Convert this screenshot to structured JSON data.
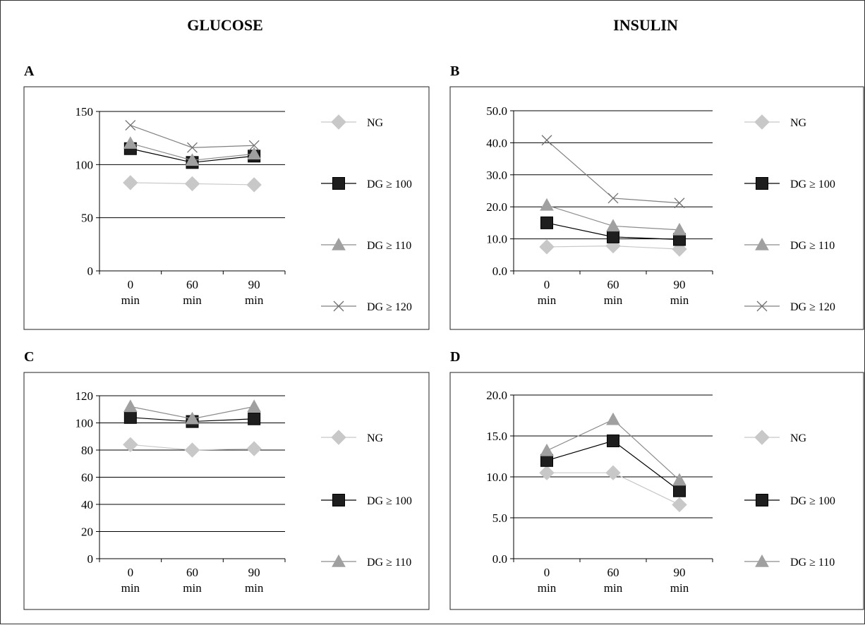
{
  "figure": {
    "column_titles": [
      "GLUCOSE",
      "INSULIN"
    ]
  },
  "series_styles": {
    "NG": {
      "marker": "diamond",
      "color": "#c8c8c8",
      "line": "#c8c8c8"
    },
    "DG ≥ 100": {
      "marker": "square",
      "color": "#1e1e1e",
      "line": "#000000"
    },
    "DG ≥ 110": {
      "marker": "triangle",
      "color": "#a0a0a0",
      "line": "#8c8c8c"
    },
    "DG ≥ 120": {
      "marker": "cross",
      "color": "#707070",
      "line": "#808080"
    }
  },
  "chart_data": [
    {
      "panel": "A",
      "type": "line",
      "categories": [
        "0\nmin",
        "60\nmin",
        "90\nmin"
      ],
      "ylim": [
        0,
        150
      ],
      "yticks": [
        "0",
        "50",
        "100",
        "150"
      ],
      "grid": true,
      "legend": "right",
      "series": [
        {
          "name": "NG",
          "values": [
            83,
            82,
            81
          ]
        },
        {
          "name": "DG ≥ 100",
          "values": [
            115,
            102,
            108
          ]
        },
        {
          "name": "DG ≥ 110",
          "values": [
            120,
            104,
            110
          ]
        },
        {
          "name": "DG ≥ 120",
          "values": [
            137,
            116,
            118
          ]
        }
      ]
    },
    {
      "panel": "B",
      "type": "line",
      "categories": [
        "0\nmin",
        "60\nmin",
        "90\nmin"
      ],
      "ylim": [
        0,
        50
      ],
      "yticks": [
        "0.0",
        "10.0",
        "20.0",
        "30.0",
        "40.0",
        "50.0"
      ],
      "grid": true,
      "legend": "right",
      "series": [
        {
          "name": "NG",
          "values": [
            7.5,
            7.8,
            6.8
          ]
        },
        {
          "name": "DG ≥ 100",
          "values": [
            15.0,
            10.6,
            9.8
          ]
        },
        {
          "name": "DG ≥ 110",
          "values": [
            20.5,
            14.0,
            12.8
          ]
        },
        {
          "name": "DG ≥ 120",
          "values": [
            40.8,
            22.7,
            21.2
          ]
        }
      ]
    },
    {
      "panel": "C",
      "type": "line",
      "categories": [
        "0\nmin",
        "60\nmin",
        "90\nmin"
      ],
      "ylim": [
        0,
        120
      ],
      "yticks": [
        "0",
        "20",
        "40",
        "60",
        "80",
        "100",
        "120"
      ],
      "grid": true,
      "legend": "right",
      "series": [
        {
          "name": "NG",
          "values": [
            84,
            80,
            81
          ]
        },
        {
          "name": "DG ≥ 100",
          "values": [
            104,
            101,
            103
          ]
        },
        {
          "name": "DG ≥ 110",
          "values": [
            112,
            103,
            112
          ]
        }
      ]
    },
    {
      "panel": "D",
      "type": "line",
      "categories": [
        "0\nmin",
        "60\nmin",
        "90\nmin"
      ],
      "ylim": [
        0,
        20
      ],
      "yticks": [
        "0.0",
        "5.0",
        "10.0",
        "15.0",
        "20.0"
      ],
      "grid": true,
      "legend": "right",
      "series": [
        {
          "name": "NG",
          "values": [
            10.5,
            10.5,
            6.6
          ]
        },
        {
          "name": "DG ≥ 100",
          "values": [
            12.0,
            14.4,
            8.3
          ]
        },
        {
          "name": "DG ≥ 110",
          "values": [
            13.2,
            17.0,
            9.6
          ]
        }
      ]
    }
  ]
}
